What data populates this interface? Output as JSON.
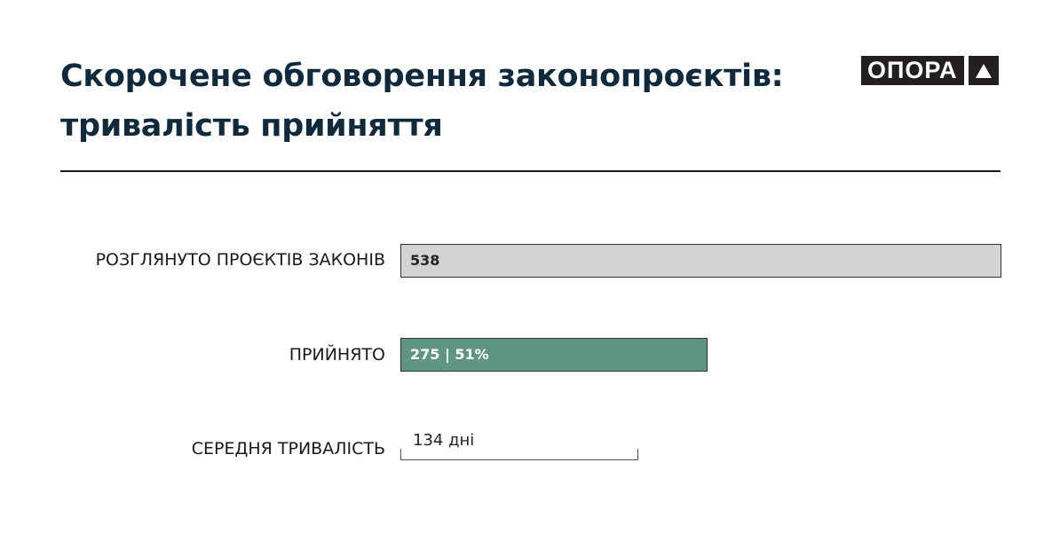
{
  "title_line1": "Скорочене обговорення законопроєктів:",
  "title_line2": "тривалість прийняття",
  "logo": {
    "text": "ОПОРА",
    "icon": "triangle-up-icon"
  },
  "chart_data": {
    "type": "bar",
    "orientation": "horizontal",
    "categories": [
      "РОЗГЛЯНУТО ПРОЄКТІВ ЗАКОНІВ",
      "ПРИЙНЯТО"
    ],
    "values": [
      538,
      275
    ],
    "data_labels": [
      "538",
      "275 | 51%"
    ],
    "colors": [
      "#d3d3d3",
      "#5e9683"
    ],
    "duration": {
      "label": "СЕРЕДНЯ ТРИВАЛІСТЬ",
      "value": 134,
      "value_label": "134 дні"
    }
  }
}
